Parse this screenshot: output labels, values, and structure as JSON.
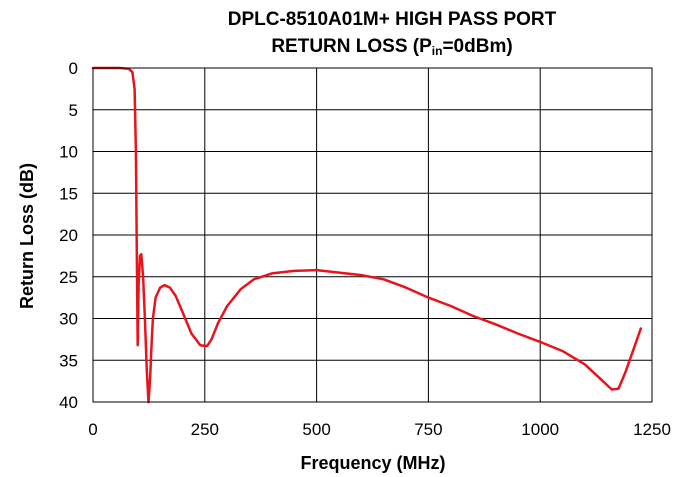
{
  "chart_data": {
    "type": "line",
    "title_line1": "DPLC-8510A01M+ HIGH PASS PORT",
    "title_line2_prefix": "RETURN LOSS (P",
    "title_line2_sub": "in",
    "title_line2_suffix": "=0dBm)",
    "xlabel": "Frequency (MHz)",
    "ylabel": "Return Loss (dB)",
    "xlim": [
      0,
      1250
    ],
    "ylim": [
      0,
      40
    ],
    "y_inverted": true,
    "x_ticks": [
      "0",
      "250",
      "500",
      "750",
      "1000",
      "1250"
    ],
    "y_ticks": [
      "0",
      "5",
      "10",
      "15",
      "20",
      "25",
      "30",
      "35",
      "40"
    ],
    "grid": true,
    "legend": "none",
    "series": [
      {
        "color": "#e8141b",
        "x": [
          0,
          60,
          80,
          88,
          93,
          96,
          98,
          100,
          102,
          105,
          108,
          112,
          116,
          120,
          124,
          128,
          131,
          134,
          140,
          150,
          160,
          172,
          185,
          200,
          220,
          240,
          255,
          265,
          280,
          300,
          330,
          360,
          400,
          450,
          500,
          550,
          600,
          650,
          700,
          750,
          800,
          850,
          900,
          950,
          1000,
          1050,
          1100,
          1140,
          1160,
          1175,
          1190,
          1210,
          1225
        ],
        "y": [
          0,
          0,
          0.1,
          0.5,
          2.5,
          10,
          22,
          33.2,
          26,
          22.5,
          22.3,
          25,
          30,
          36,
          40,
          37,
          33,
          30,
          27.5,
          26.3,
          26,
          26.3,
          27.3,
          29.2,
          31.8,
          33.2,
          33.3,
          32.5,
          30.5,
          28.5,
          26.5,
          25.3,
          24.6,
          24.3,
          24.2,
          24.5,
          24.8,
          25.3,
          26.3,
          27.5,
          28.5,
          29.7,
          30.7,
          31.8,
          32.8,
          33.9,
          35.5,
          37.5,
          38.5,
          38.4,
          36.5,
          33.5,
          31.2
        ]
      }
    ]
  }
}
